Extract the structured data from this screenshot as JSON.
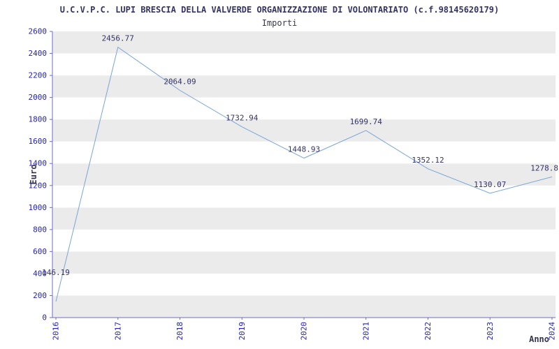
{
  "page": {
    "title": "U.C.V.P.C. LUPI BRESCIA DELLA VALVERDE ORGANIZZAZIONE DI VOLONTARIATO (c.f.98145620179)",
    "subtitle": "Importi"
  },
  "chart_data": {
    "type": "line",
    "title": "Importi",
    "xlabel": "Anno",
    "ylabel": "Euro",
    "x": [
      2016,
      2017,
      2018,
      2019,
      2020,
      2021,
      2022,
      2023,
      2024
    ],
    "values": [
      146.19,
      2456.77,
      2064.09,
      1732.94,
      1448.93,
      1699.74,
      1352.12,
      1130.07,
      1278.8
    ],
    "labels": [
      "146.19",
      "2456.77",
      "2064.09",
      "1732.94",
      "1448.93",
      "1699.74",
      "1352.12",
      "1130.07",
      "1278.8"
    ],
    "ylim": [
      0,
      2600
    ],
    "ytick_step": 200,
    "grid": "alternating-bands",
    "legend": "none",
    "line_color": "#7aa5d8",
    "band_color": "#ebebeb",
    "band_alt_color": "#ffffff",
    "tick_color": "#2222bb",
    "axis_color": "#6b6bd0",
    "value_label_color": "#333366",
    "axis_title_color": "#333355"
  }
}
